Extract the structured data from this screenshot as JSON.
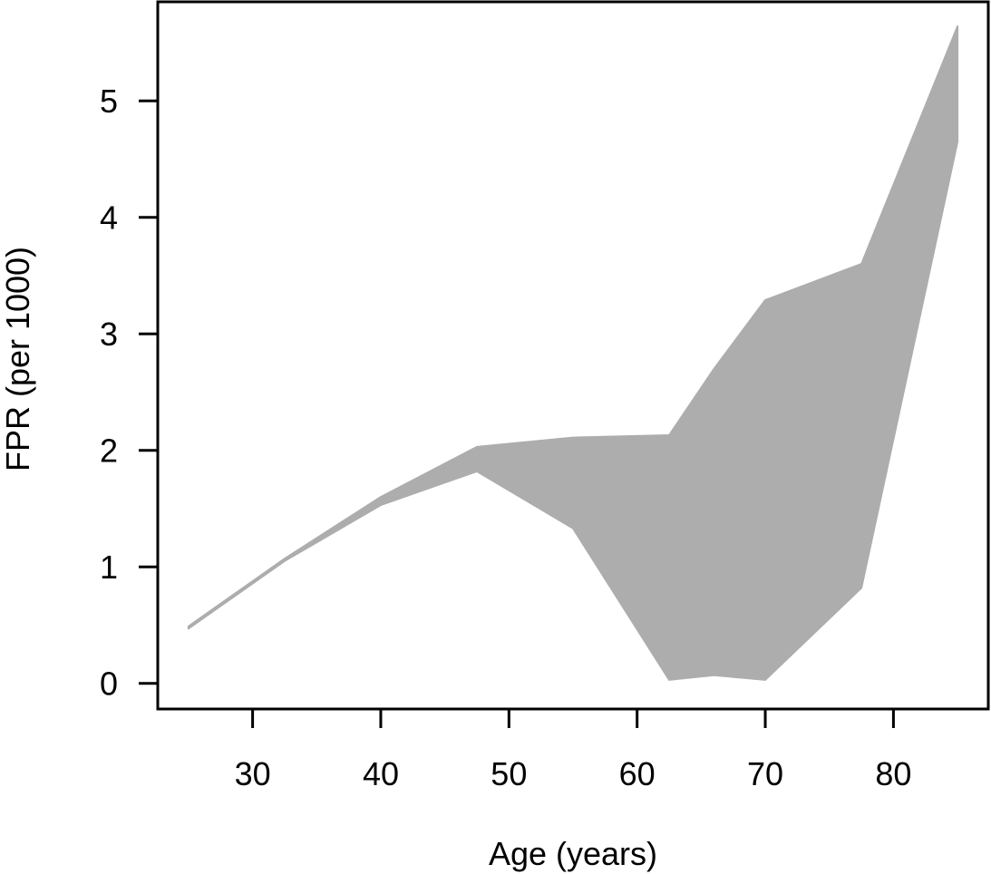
{
  "chart_data": {
    "type": "area",
    "xlabel": "Age (years)",
    "ylabel": "FPR (per 1000)",
    "xlim": [
      22.6,
      87.4
    ],
    "ylim": [
      -0.22,
      5.85
    ],
    "xticks": [
      30,
      40,
      50,
      60,
      70,
      80
    ],
    "yticks": [
      0,
      1,
      2,
      3,
      4,
      5
    ],
    "grid": false,
    "fill_color": "#adadad",
    "band": {
      "x": [
        25,
        32.5,
        40,
        47.5,
        55,
        62.5,
        66,
        70,
        77.5,
        85
      ],
      "upper": [
        0.49,
        1.07,
        1.6,
        2.03,
        2.11,
        2.13,
        2.7,
        3.29,
        3.6,
        5.64
      ],
      "lower": [
        0.47,
        1.05,
        1.53,
        1.82,
        1.33,
        0.03,
        0.07,
        0.03,
        0.82,
        4.65
      ]
    }
  }
}
